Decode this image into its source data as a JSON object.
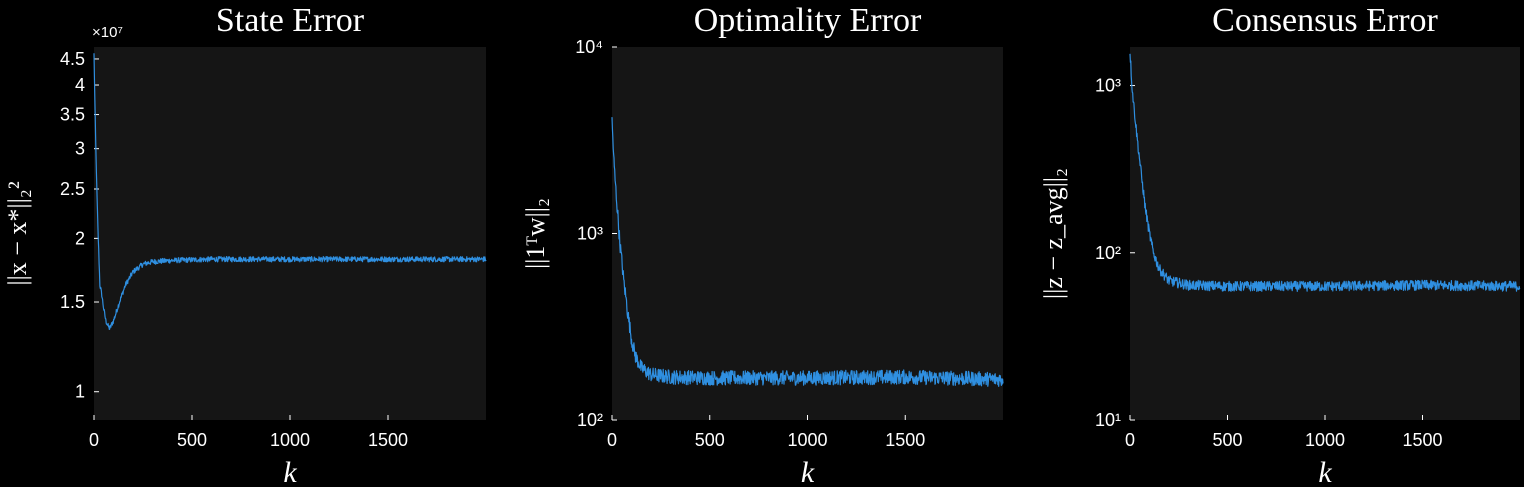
{
  "chart_data": [
    {
      "type": "line",
      "title": "State Error",
      "xlabel": "k",
      "ylabel": "||x − x*||₂²",
      "yscale": "log",
      "ylim": [
        0.88,
        4.75
      ],
      "multiplier": "×10⁷",
      "xlim": [
        0,
        2000
      ],
      "xticks": [
        0,
        500,
        1000,
        1500
      ],
      "yticks": [
        1,
        1.5,
        2,
        2.5,
        3,
        3.5,
        4,
        4.5
      ],
      "ytick_labels": [
        "1",
        "1.5",
        "2",
        "2.5",
        "3",
        "3.5",
        "4",
        "4.5"
      ],
      "series": [
        {
          "color": "#2f8fe0",
          "noise": 0.012,
          "x": [
            0,
            5,
            10,
            20,
            30,
            40,
            50,
            60,
            70,
            80,
            100,
            130,
            160,
            200,
            250,
            300,
            400,
            600,
            1000,
            1500,
            2000
          ],
          "y": [
            4.6,
            3.6,
            2.9,
            2.1,
            1.62,
            1.55,
            1.45,
            1.38,
            1.35,
            1.33,
            1.38,
            1.5,
            1.62,
            1.72,
            1.78,
            1.8,
            1.81,
            1.82,
            1.82,
            1.82,
            1.82
          ]
        }
      ],
      "grid": false
    },
    {
      "type": "line",
      "title": "Optimality Error",
      "xlabel": "k",
      "ylabel": "||1ᵀw||₂",
      "yscale": "log",
      "ylim": [
        100,
        10000
      ],
      "xlim": [
        0,
        2000
      ],
      "xticks": [
        0,
        500,
        1000,
        1500
      ],
      "yticks": [
        100,
        1000,
        10000
      ],
      "ytick_labels": [
        "10²",
        "10³",
        "10⁴"
      ],
      "series": [
        {
          "color": "#2f8fe0",
          "noise": 0.09,
          "x": [
            0,
            10,
            20,
            40,
            60,
            80,
            100,
            120,
            150,
            200,
            300,
            500,
            1000,
            1500,
            2000
          ],
          "y": [
            4000,
            2400,
            1700,
            900,
            560,
            380,
            270,
            220,
            190,
            175,
            170,
            168,
            168,
            170,
            165
          ]
        }
      ],
      "grid": false
    },
    {
      "type": "line",
      "title": "Consensus Error",
      "xlabel": "k",
      "ylabel": "||z − z_avg||₂",
      "yscale": "log",
      "ylim": [
        10,
        1700
      ],
      "xlim": [
        0,
        2000
      ],
      "xticks": [
        0,
        500,
        1000,
        1500
      ],
      "yticks": [
        10,
        100,
        1000
      ],
      "ytick_labels": [
        "10¹",
        "10²",
        "10³"
      ],
      "series": [
        {
          "color": "#2f8fe0",
          "noise": 0.07,
          "x": [
            0,
            10,
            20,
            40,
            60,
            80,
            100,
            120,
            150,
            200,
            300,
            500,
            1000,
            1500,
            2000
          ],
          "y": [
            1600,
            1000,
            750,
            450,
            280,
            180,
            130,
            100,
            80,
            68,
            64,
            63,
            63,
            64,
            63
          ]
        }
      ],
      "grid": false
    }
  ]
}
